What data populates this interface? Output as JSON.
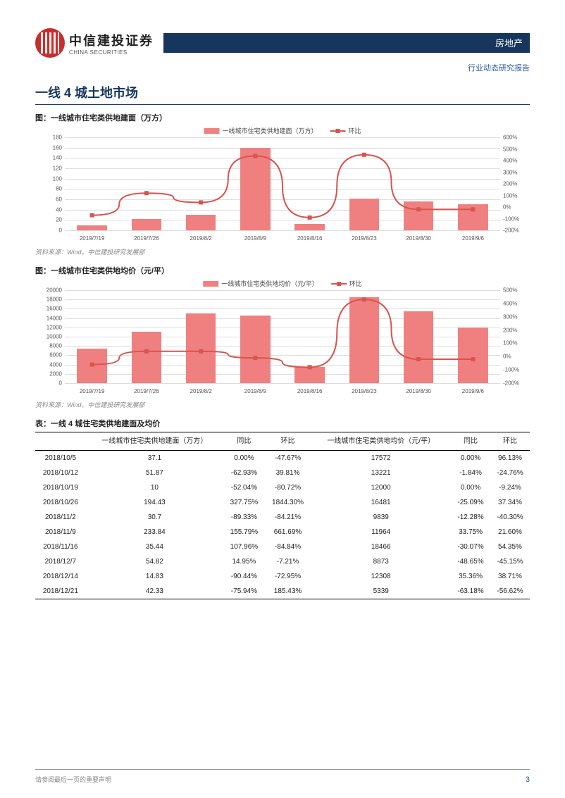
{
  "header": {
    "logo_cn": "中信建投证券",
    "logo_en": "CHINA SECURITIES",
    "bar_label": "房地产",
    "bar_color": "#17365d",
    "subhead": "行业动态研究报告",
    "subhead_color": "#2a5a9b"
  },
  "section_title": "一线 4 城土地市场",
  "chart1": {
    "title": "图：一线城市住宅类供地建面（万方）",
    "type": "bar+line",
    "categories": [
      "2019/7/19",
      "2019/7/26",
      "2019/8/2",
      "2019/8/9",
      "2019/8/16",
      "2019/8/23",
      "2019/8/30",
      "2019/9/6"
    ],
    "bars": {
      "label": "一线城市住宅类供地建面（万方）",
      "values": [
        10,
        22,
        30,
        160,
        12,
        62,
        56,
        50
      ],
      "color": "#f08080",
      "axis": {
        "min": 0,
        "max": 180,
        "step": 20
      }
    },
    "line": {
      "label": "环比",
      "values": [
        -70,
        120,
        40,
        440,
        -90,
        450,
        -20,
        -20
      ],
      "color": "#d9534f",
      "axis": {
        "min": -200,
        "max": 600,
        "step": 100,
        "suffix": "%"
      }
    },
    "grid_color": "#dddddd",
    "background": "#ffffff",
    "source": "资料来源：Wind，中信建投研究发展部"
  },
  "chart2": {
    "title": "图：一线城市住宅类供地均价（元/平）",
    "type": "bar+line",
    "categories": [
      "2019/7/19",
      "2019/7/26",
      "2019/8/2",
      "2019/8/9",
      "2019/8/16",
      "2019/8/23",
      "2019/8/30",
      "2019/9/6"
    ],
    "bars": {
      "label": "一线城市住宅类供地均价（元/平）",
      "values": [
        7500,
        11000,
        15000,
        14500,
        3500,
        18500,
        15500,
        12000
      ],
      "color": "#f08080",
      "axis": {
        "min": 0,
        "max": 20000,
        "step": 2000
      }
    },
    "line": {
      "label": "环比",
      "values": [
        -60,
        40,
        40,
        -10,
        -80,
        430,
        -20,
        -20
      ],
      "color": "#d9534f",
      "axis": {
        "min": -200,
        "max": 500,
        "step": 100,
        "suffix": "%"
      }
    },
    "grid_color": "#dddddd",
    "background": "#ffffff",
    "source": "资料来源：Wind，中信建投研究发展部"
  },
  "table": {
    "title": "表：一线 4 城住宅类供地建面及均价",
    "columns": [
      "",
      "一线城市住宅类供地建面（万方）",
      "同比",
      "环比",
      "一线城市住宅类供地均价（元/平）",
      "同比",
      "环比"
    ],
    "rows": [
      [
        "2018/10/5",
        "37.1",
        "0.00%",
        "-47.67%",
        "17572",
        "0.00%",
        "96.13%"
      ],
      [
        "2018/10/12",
        "51.87",
        "-62.93%",
        "39.81%",
        "13221",
        "-1.84%",
        "-24.76%"
      ],
      [
        "2018/10/19",
        "10",
        "-52.04%",
        "-80.72%",
        "12000",
        "0.00%",
        "-9.24%"
      ],
      [
        "2018/10/26",
        "194.43",
        "327.75%",
        "1844.30%",
        "16481",
        "-25.09%",
        "37.34%"
      ],
      [
        "2018/11/2",
        "30.7",
        "-89.33%",
        "-84.21%",
        "9839",
        "-12.28%",
        "-40.30%"
      ],
      [
        "2018/11/9",
        "233.84",
        "155.79%",
        "661.69%",
        "11964",
        "33.75%",
        "21.60%"
      ],
      [
        "2018/11/16",
        "35.44",
        "107.96%",
        "-84.84%",
        "18466",
        "-30.07%",
        "54.35%"
      ],
      [
        "2018/12/7",
        "54.82",
        "14.95%",
        "-7.21%",
        "8873",
        "-48.65%",
        "-45.15%"
      ],
      [
        "2018/12/14",
        "14.83",
        "-90.44%",
        "-72.95%",
        "12308",
        "35.36%",
        "38.71%"
      ],
      [
        "2018/12/21",
        "42.33",
        "-75.94%",
        "185.43%",
        "5339",
        "-63.18%",
        "-56.62%"
      ]
    ]
  },
  "footer": {
    "note": "请参阅最后一页的重要声明",
    "page": "3"
  }
}
